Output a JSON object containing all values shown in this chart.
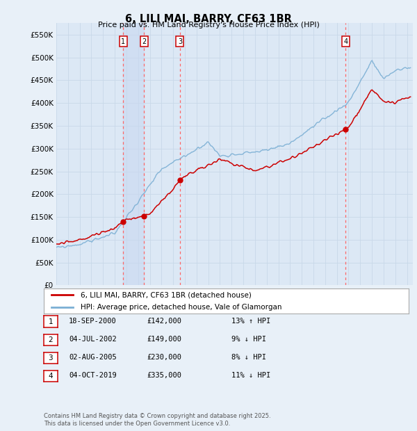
{
  "title": "6, LILI MAI, BARRY, CF63 1BR",
  "subtitle": "Price paid vs. HM Land Registry's House Price Index (HPI)",
  "ytick_values": [
    0,
    50000,
    100000,
    150000,
    200000,
    250000,
    300000,
    350000,
    400000,
    450000,
    500000,
    550000
  ],
  "ylim": [
    0,
    575000
  ],
  "xlim_start": 1995.0,
  "xlim_end": 2025.5,
  "transactions": [
    {
      "num": 1,
      "date_str": "18-SEP-2000",
      "year": 2000.71,
      "price": 142000,
      "pct": "13%",
      "dir": "↑"
    },
    {
      "num": 2,
      "date_str": "04-JUL-2002",
      "year": 2002.5,
      "price": 149000,
      "pct": "9%",
      "dir": "↓"
    },
    {
      "num": 3,
      "date_str": "02-AUG-2005",
      "year": 2005.58,
      "price": 230000,
      "pct": "8%",
      "dir": "↓"
    },
    {
      "num": 4,
      "date_str": "04-OCT-2019",
      "year": 2019.75,
      "price": 335000,
      "pct": "11%",
      "dir": "↓"
    }
  ],
  "legend_entries": [
    "6, LILI MAI, BARRY, CF63 1BR (detached house)",
    "HPI: Average price, detached house, Vale of Glamorgan"
  ],
  "table_rows": [
    [
      "1",
      "18-SEP-2000",
      "£142,000",
      "13% ↑ HPI"
    ],
    [
      "2",
      "04-JUL-2002",
      "£149,000",
      "9% ↓ HPI"
    ],
    [
      "3",
      "02-AUG-2005",
      "£230,000",
      "8% ↓ HPI"
    ],
    [
      "4",
      "04-OCT-2019",
      "£335,000",
      "11% ↓ HPI"
    ]
  ],
  "footnote": "Contains HM Land Registry data © Crown copyright and database right 2025.\nThis data is licensed under the Open Government Licence v3.0.",
  "hpi_color": "#7bafd4",
  "price_color": "#cc0000",
  "vline_color": "#ff6666",
  "bg_color": "#e8f0f8",
  "plot_bg": "#dce8f5",
  "grid_color": "#c8d8e8",
  "box_color": "#cc0000",
  "shade_color": "#c8d8f0"
}
